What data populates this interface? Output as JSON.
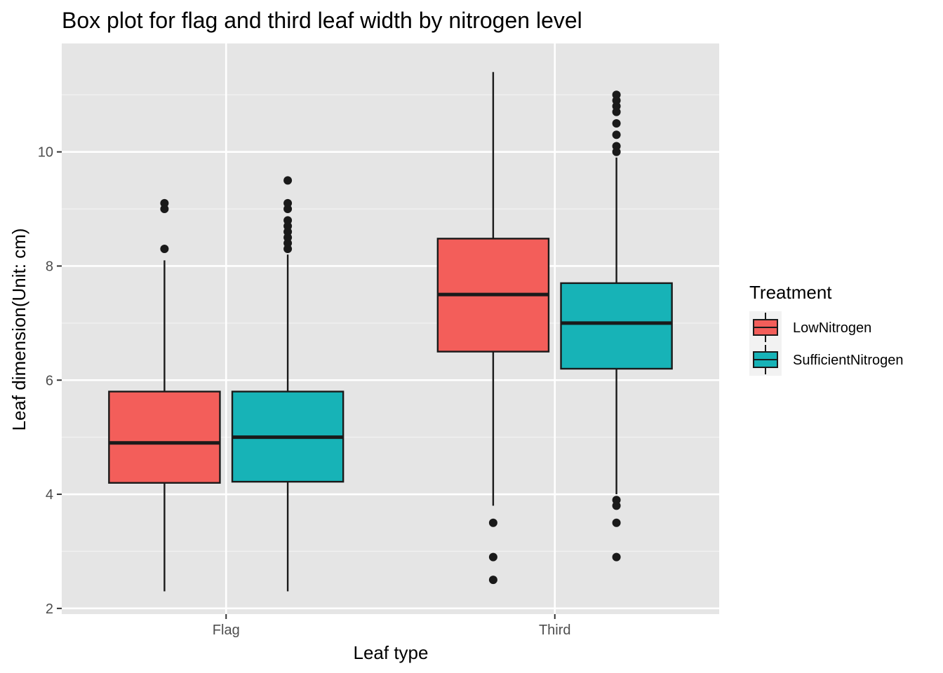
{
  "chart_data": {
    "type": "box",
    "title": "Box plot for flag and third leaf width by nitrogen level",
    "xlabel": "Leaf type",
    "ylabel": "Leaf dimension(Unit: cm)",
    "categories": [
      "Flag",
      "Third"
    ],
    "ylim": [
      1.9,
      11.9
    ],
    "yticks": [
      2,
      4,
      6,
      8,
      10
    ],
    "grid": true,
    "legend": {
      "title": "Treatment",
      "position": "right"
    },
    "series": [
      {
        "name": "LowNitrogen",
        "color": "#F35E5A",
        "boxes": [
          {
            "category": "Flag",
            "min": 2.3,
            "q1": 4.2,
            "median": 4.9,
            "q3": 5.8,
            "max": 8.1,
            "outliers": [
              8.3,
              9.0,
              9.1
            ]
          },
          {
            "category": "Third",
            "min": 3.8,
            "q1": 6.5,
            "median": 7.5,
            "q3": 8.48,
            "max": 11.4,
            "outliers": [
              2.5,
              2.9,
              3.5
            ]
          }
        ]
      },
      {
        "name": "SufficientNitrogen",
        "color": "#17B3B7",
        "boxes": [
          {
            "category": "Flag",
            "min": 2.3,
            "q1": 4.22,
            "median": 5.0,
            "q3": 5.8,
            "max": 8.2,
            "outliers": [
              8.3,
              8.4,
              8.5,
              8.6,
              8.7,
              8.8,
              9.0,
              9.1,
              9.5
            ]
          },
          {
            "category": "Third",
            "min": 4.0,
            "q1": 6.2,
            "median": 7.0,
            "q3": 7.7,
            "max": 9.9,
            "outliers": [
              2.9,
              3.5,
              3.8,
              3.9,
              10.0,
              10.1,
              10.3,
              10.5,
              10.7,
              10.8,
              10.9,
              11.0
            ]
          }
        ]
      }
    ]
  }
}
